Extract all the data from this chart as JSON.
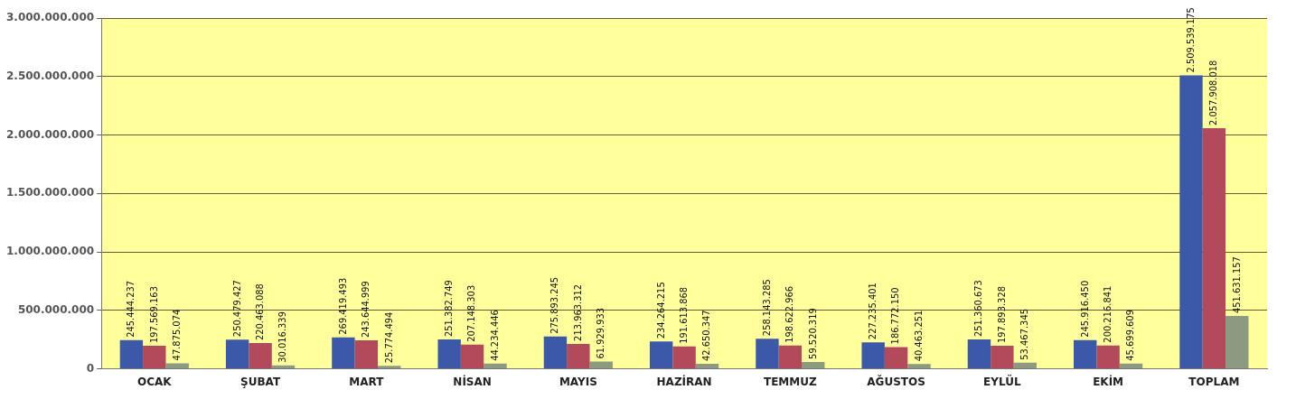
{
  "chart_data": {
    "type": "bar",
    "categories": [
      "OCAK",
      "ŞUBAT",
      "MART",
      "NİSAN",
      "MAYIS",
      "HAZİRAN",
      "TEMMUZ",
      "AĞUSTOS",
      "EYLÜL",
      "EKİM",
      "TOPLAM"
    ],
    "series": [
      {
        "color": "#3c58a8",
        "values": [
          245444237,
          250479427,
          269419493,
          251382749,
          275893245,
          234264215,
          258143285,
          227235401,
          251360673,
          245916450,
          2509539175
        ],
        "value_labels": [
          "245.444.237",
          "250.479.427",
          "269.419.493",
          "251.382.749",
          "275.893.245",
          "234.264.215",
          "258.143.285",
          "227.235.401",
          "251.360.673",
          "245.916.450",
          "2.509.539.175"
        ]
      },
      {
        "color": "#b24a5c",
        "values": [
          197569163,
          220463088,
          243644999,
          207148303,
          213963312,
          191613868,
          198622966,
          186772150,
          197893328,
          200216841,
          2057908018
        ],
        "value_labels": [
          "197.569.163",
          "220.463.088",
          "243.644.999",
          "207.148.303",
          "213.963.312",
          "191.613.868",
          "198.622.966",
          "186.772.150",
          "197.893.328",
          "200.216.841",
          "2.057.908.018"
        ]
      },
      {
        "color": "#8c9a82",
        "values": [
          47875074,
          30016339,
          25774494,
          44234446,
          61929933,
          42650347,
          59520319,
          40463251,
          53467345,
          45699609,
          451631157
        ],
        "value_labels": [
          "47.875.074",
          "30.016.339",
          "25.774.494",
          "44.234.446",
          "61.929.933",
          "42.650.347",
          "59.520.319",
          "40.463.251",
          "53.467.345",
          "45.699.609",
          "451.631.157"
        ]
      }
    ],
    "ylim": [
      0,
      3000000000
    ],
    "yticks": [
      0,
      {
        "value": 500000000,
        "label": "500.000.000"
      },
      {
        "value": 1000000000,
        "label": "1.000.000.000"
      },
      {
        "value": 1500000000,
        "label": "1.500.000.000"
      },
      {
        "value": 2000000000,
        "label": "2.000.000.000"
      },
      {
        "value": 2500000000,
        "label": "2.500.000.000"
      },
      {
        "value": 3000000000,
        "label": "3.000.000.000"
      }
    ],
    "grid": "y",
    "legend": false
  }
}
